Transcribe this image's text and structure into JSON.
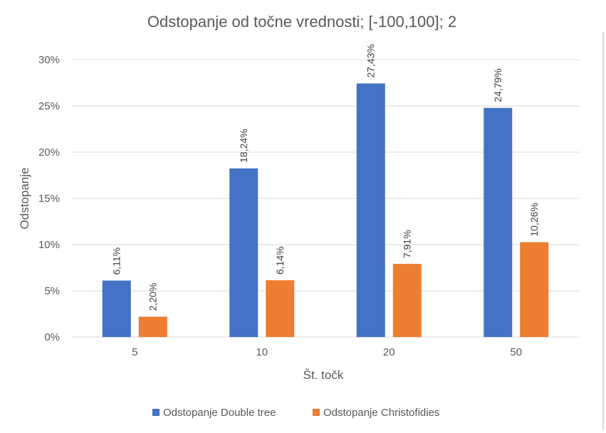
{
  "chart_data": {
    "type": "bar",
    "title": "Odstopanje od točne vrednosti; [-100,100]; 2",
    "xlabel": "Št. točk",
    "ylabel": "Odstopanje",
    "categories": [
      "5",
      "10",
      "20",
      "50"
    ],
    "ylim": [
      0,
      30
    ],
    "yticks": [
      "0%",
      "5%",
      "10%",
      "15%",
      "20%",
      "25%",
      "30%"
    ],
    "grid": true,
    "legend_position": "bottom",
    "series": [
      {
        "name": "Odstopanje Double tree",
        "color": "#4472c4",
        "values": [
          6.11,
          18.24,
          27.43,
          24.79
        ],
        "labels": [
          "6,11%",
          "18,24%",
          "27,43%",
          "24,79%"
        ]
      },
      {
        "name": "Odstopanje Christofidies",
        "color": "#ed7d31",
        "values": [
          2.2,
          6.14,
          7.91,
          10.26
        ],
        "labels": [
          "2,20%",
          "6,14%",
          "7,91%",
          "10,26%"
        ]
      }
    ]
  }
}
